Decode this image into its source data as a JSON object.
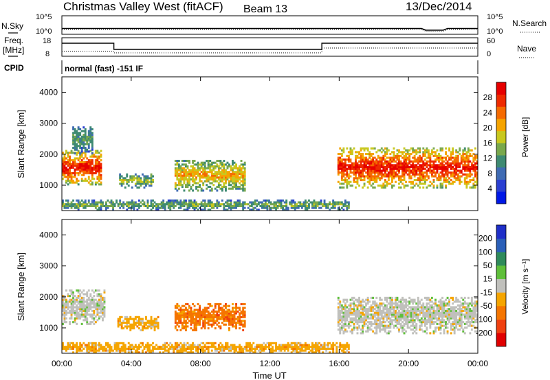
{
  "header": {
    "station": "Christmas Valley West (fitACF)",
    "beam": "Beam 13",
    "date": "13/Dec/2014"
  },
  "top_panels": {
    "nsky": {
      "label": "N.Sky",
      "tick_top": "10^5",
      "tick_bottom": "10^0"
    },
    "nsearch": {
      "label": "N.Search",
      "tick_top": "10^5",
      "tick_bottom": "10^0"
    },
    "freq": {
      "label_line1": "Freq.",
      "label_line2": "[MHz]",
      "tick_top": "18",
      "tick_bottom": "8"
    },
    "nave": {
      "label": "Nave",
      "tick_top": "60",
      "tick_bottom": "0"
    },
    "cpid": {
      "label": "CPID",
      "value": "normal (fast) -151 IF"
    }
  },
  "chart_data": [
    {
      "type": "heatmap",
      "quantity": "Power",
      "ylabel": "Slant Range [km]",
      "ylim": [
        180,
        4500
      ],
      "y_ticks": [
        "1000",
        "2000",
        "3000",
        "4000"
      ],
      "x_ticks": [
        "00:00",
        "04:00",
        "08:00",
        "12:00",
        "16:00",
        "20:00",
        "00:00"
      ],
      "xlim_hours": [
        0,
        24
      ],
      "colorbar": {
        "label": "Power [dB]",
        "ticks": [
          "4",
          "8",
          "12",
          "16",
          "20",
          "24",
          "28"
        ],
        "colors": [
          "#0018e6",
          "#2a3fd1",
          "#3f6bb3",
          "#3e8a72",
          "#79a84c",
          "#c8c81e",
          "#f5a400",
          "#f56a00",
          "#ee2a00",
          "#e60000"
        ]
      },
      "echo_regions": [
        {
          "t_start": 0.0,
          "t_end": 2.3,
          "r_low": 1000,
          "r_high": 2100,
          "level": 0.85
        },
        {
          "t_start": 0.6,
          "t_end": 1.8,
          "r_low": 2000,
          "r_high": 2900,
          "level": 0.35
        },
        {
          "t_start": 3.3,
          "t_end": 5.2,
          "r_low": 900,
          "r_high": 1350,
          "level": 0.45
        },
        {
          "t_start": 6.5,
          "t_end": 10.5,
          "r_low": 800,
          "r_high": 1800,
          "level": 0.6
        },
        {
          "t_start": 15.9,
          "t_end": 24.0,
          "r_low": 900,
          "r_high": 2200,
          "level": 0.85
        },
        {
          "t_start": 0.0,
          "t_end": 16.5,
          "r_low": 180,
          "r_high": 500,
          "level": 0.4
        }
      ]
    },
    {
      "type": "heatmap",
      "quantity": "Velocity",
      "ylabel": "Slant Range [km]",
      "ylim": [
        180,
        4500
      ],
      "y_ticks": [
        "1000",
        "2000",
        "3000",
        "4000"
      ],
      "x_ticks": [
        "00:00",
        "04:00",
        "08:00",
        "12:00",
        "16:00",
        "20:00",
        "00:00"
      ],
      "xlabel": "Time UT",
      "xlim_hours": [
        0,
        24
      ],
      "colorbar": {
        "label": "Velocity [m s⁻¹]",
        "ticks": [
          "200",
          "100",
          "50",
          "15",
          "-15",
          "-50",
          "-100",
          "-200"
        ],
        "colors": [
          "#1f2fc8",
          "#2a5fb8",
          "#2e8a5a",
          "#5fbf3a",
          "#c0c0bc",
          "#f5a500",
          "#f57500",
          "#f04010",
          "#e00000"
        ]
      },
      "echo_regions": [
        {
          "t_start": 0.0,
          "t_end": 2.5,
          "r_low": 1100,
          "r_high": 2200,
          "color_index": 4
        },
        {
          "t_start": 3.2,
          "t_end": 5.5,
          "r_low": 900,
          "r_high": 1350,
          "color_index": 5
        },
        {
          "t_start": 6.5,
          "t_end": 10.5,
          "r_low": 900,
          "r_high": 1800,
          "color_index": 6
        },
        {
          "t_start": 15.9,
          "t_end": 24.0,
          "r_low": 800,
          "r_high": 2000,
          "color_index": 4
        },
        {
          "t_start": 0.0,
          "t_end": 16.5,
          "r_low": 180,
          "r_high": 500,
          "color_index": 5
        }
      ]
    }
  ]
}
